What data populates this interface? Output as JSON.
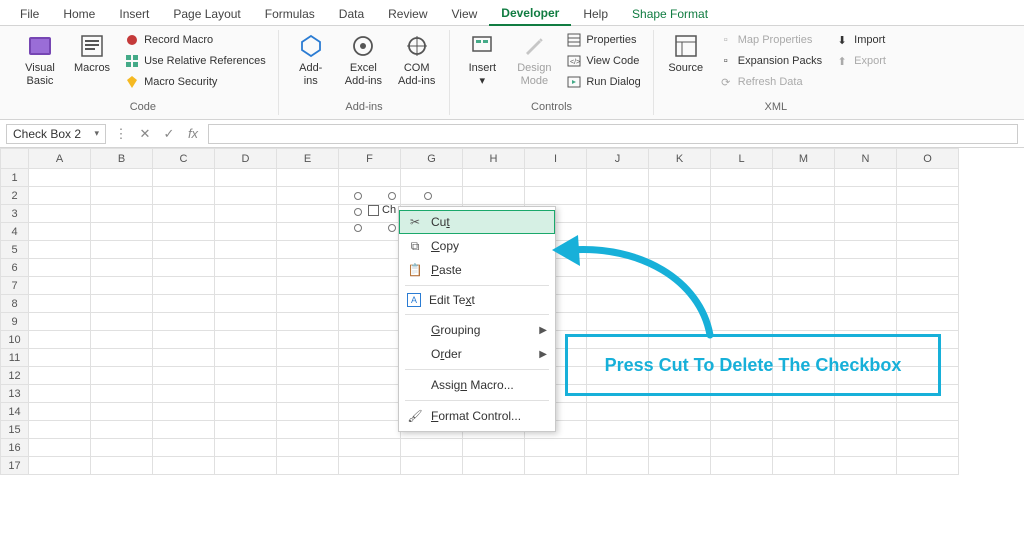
{
  "tabs": {
    "file": "File",
    "home": "Home",
    "insert": "Insert",
    "page_layout": "Page Layout",
    "formulas": "Formulas",
    "data": "Data",
    "review": "Review",
    "view": "View",
    "developer": "Developer",
    "help": "Help",
    "shape_format": "Shape Format",
    "active": "developer"
  },
  "ribbon": {
    "code": {
      "label": "Code",
      "visual_basic": "Visual\nBasic",
      "macros": "Macros",
      "record_macro": "Record Macro",
      "use_relative": "Use Relative References",
      "macro_security": "Macro Security"
    },
    "addins": {
      "label": "Add-ins",
      "addins": "Add-\nins",
      "excel_addins": "Excel\nAdd-ins",
      "com_addins": "COM\nAdd-ins"
    },
    "controls": {
      "label": "Controls",
      "insert": "Insert",
      "design_mode": "Design\nMode",
      "properties": "Properties",
      "view_code": "View Code",
      "run_dialog": "Run Dialog"
    },
    "xml": {
      "label": "XML",
      "source": "Source",
      "map_properties": "Map Properties",
      "expansion_packs": "Expansion Packs",
      "refresh_data": "Refresh Data",
      "import": "Import",
      "export": "Export"
    }
  },
  "formula_bar": {
    "name_box": "Check Box 2",
    "value": ""
  },
  "grid": {
    "columns": [
      "A",
      "B",
      "C",
      "D",
      "E",
      "F",
      "G",
      "H",
      "I",
      "J",
      "K",
      "L",
      "M",
      "N",
      "O"
    ],
    "rows": 17
  },
  "checkbox_object": {
    "partial_label": "Ch"
  },
  "context_menu": {
    "cut": "Cut",
    "cut_key": "t",
    "copy": "Copy",
    "copy_key": "C",
    "paste": "Paste",
    "paste_key": "P",
    "edit_text": "Edit Text",
    "edit_text_key": "x",
    "grouping": "Grouping",
    "grouping_key": "G",
    "order": "Order",
    "order_key": "r",
    "assign_macro": "Assign Macro...",
    "assign_macro_key": "n",
    "format_control": "Format Control...",
    "format_control_key": "F"
  },
  "annotation": {
    "text": "Press Cut To Delete The Checkbox",
    "color": "#17b0d9"
  }
}
